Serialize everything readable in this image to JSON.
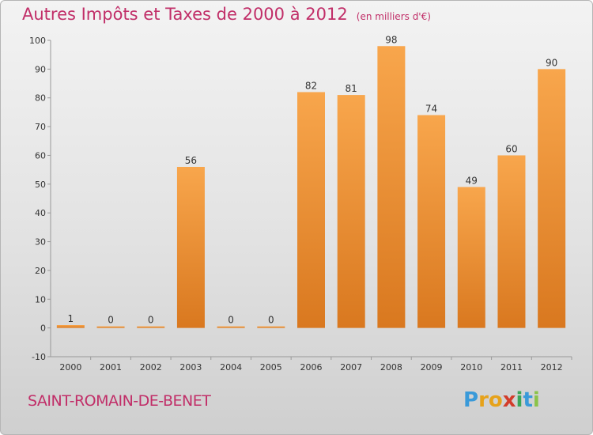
{
  "title": {
    "main": "Autres Impôts et Taxes de 2000 à 2012",
    "unit": "(en milliers d'€)"
  },
  "commune": "SAINT-ROMAIN-DE-BENET",
  "logo": {
    "letters": [
      "P",
      "r",
      "o",
      "x",
      "i",
      "t",
      "i"
    ],
    "colors": [
      "#3a9ad9",
      "#e6a21a",
      "#e6a21a",
      "#d23c2a",
      "#3aa657",
      "#3a9ad9",
      "#8bc34a"
    ]
  },
  "colors": {
    "bar_top": "#f8a64c",
    "bar_bottom": "#d9781f",
    "title": "#c12e68"
  },
  "chart_data": {
    "type": "bar",
    "categories": [
      "2000",
      "2001",
      "2002",
      "2003",
      "2004",
      "2005",
      "2006",
      "2007",
      "2008",
      "2009",
      "2010",
      "2011",
      "2012"
    ],
    "values": [
      1,
      0,
      0,
      56,
      0,
      0,
      82,
      81,
      98,
      74,
      49,
      60,
      90
    ],
    "data_labels": [
      "1",
      "0",
      "0",
      "56",
      "0",
      "0",
      "82",
      "81",
      "98",
      "74",
      "49",
      "60",
      "90"
    ],
    "yticks": [
      -10,
      0,
      10,
      20,
      30,
      40,
      50,
      60,
      70,
      80,
      90,
      100
    ],
    "ylim": [
      -10,
      100
    ],
    "grid": false
  }
}
